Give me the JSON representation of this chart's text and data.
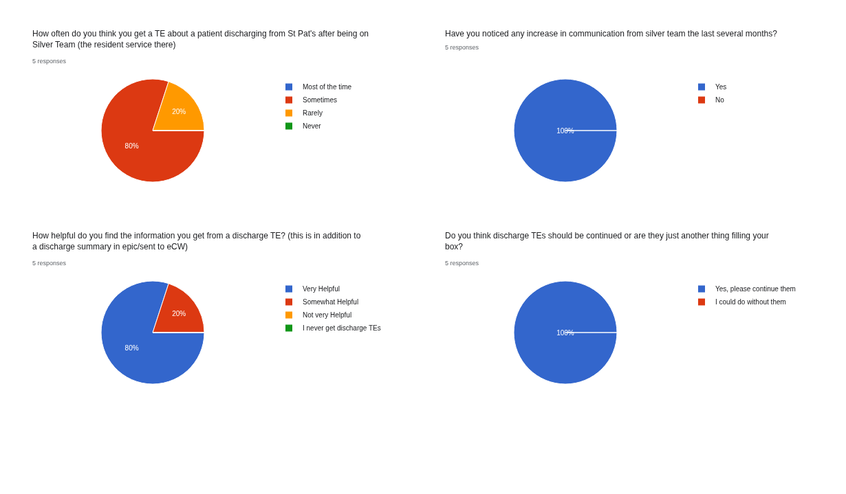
{
  "chart_data": [
    {
      "type": "pie",
      "title": "How often do you think you get a TE about a patient discharging from St Pat's after being on Silver Team (the resident service there)",
      "subtitle": "5 responses",
      "categories": [
        "Most of the time",
        "Sometimes",
        "Rarely",
        "Never"
      ],
      "values": [
        0,
        80,
        20,
        0
      ],
      "colors": [
        "#3366cc",
        "#dc3912",
        "#ff9900",
        "#109618"
      ],
      "value_labels": [
        null,
        "80%",
        "20%",
        null
      ],
      "legend": "right"
    },
    {
      "type": "pie",
      "title": "Have you noticed any increase in communication from silver team the last several months?",
      "subtitle": "5 responses",
      "categories": [
        "Yes",
        "No"
      ],
      "values": [
        100,
        0
      ],
      "colors": [
        "#3366cc",
        "#dc3912"
      ],
      "value_labels": [
        "100%",
        null
      ],
      "legend": "right"
    },
    {
      "type": "pie",
      "title": "How helpful do you find the information you get from a discharge TE? (this is in addition to a discharge summary in epic/sent to eCW)",
      "subtitle": "5 responses",
      "categories": [
        "Very Helpful",
        "Somewhat Helpful",
        "Not very Helpful",
        "I never get discharge TEs"
      ],
      "values": [
        80,
        20,
        0,
        0
      ],
      "colors": [
        "#3366cc",
        "#dc3912",
        "#ff9900",
        "#109618"
      ],
      "value_labels": [
        "80%",
        "20%",
        null,
        null
      ],
      "legend": "right"
    },
    {
      "type": "pie",
      "title": "Do you think discharge TEs should be continued or are they just another thing filling your box?",
      "subtitle": "5 responses",
      "categories": [
        "Yes, please continue them",
        "I could do without them"
      ],
      "values": [
        100,
        0
      ],
      "colors": [
        "#3366cc",
        "#dc3912"
      ],
      "value_labels": [
        "100%",
        null
      ],
      "legend": "right"
    }
  ]
}
